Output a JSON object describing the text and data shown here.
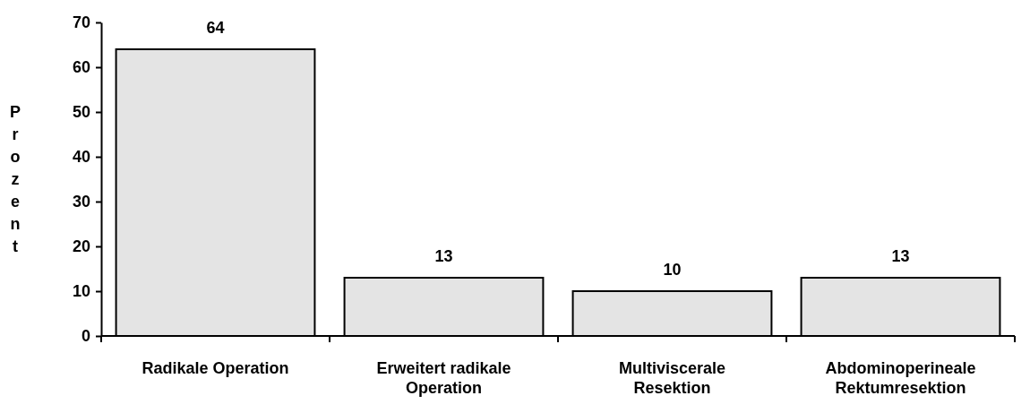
{
  "chart_data": {
    "type": "bar",
    "ylabel": "Prozent",
    "categories": [
      "Radikale Operation",
      "Erweitert radikale Operation",
      "Multiviscerale Resektion",
      "Abdominoperineale Rektumresektion"
    ],
    "values": [
      64,
      13,
      10,
      13
    ],
    "color": "#e4e4e4",
    "ylim": [
      0,
      70
    ],
    "yticks": [
      0,
      10,
      20,
      30,
      40,
      50,
      60,
      70
    ],
    "grid": false,
    "data_labels": true
  }
}
